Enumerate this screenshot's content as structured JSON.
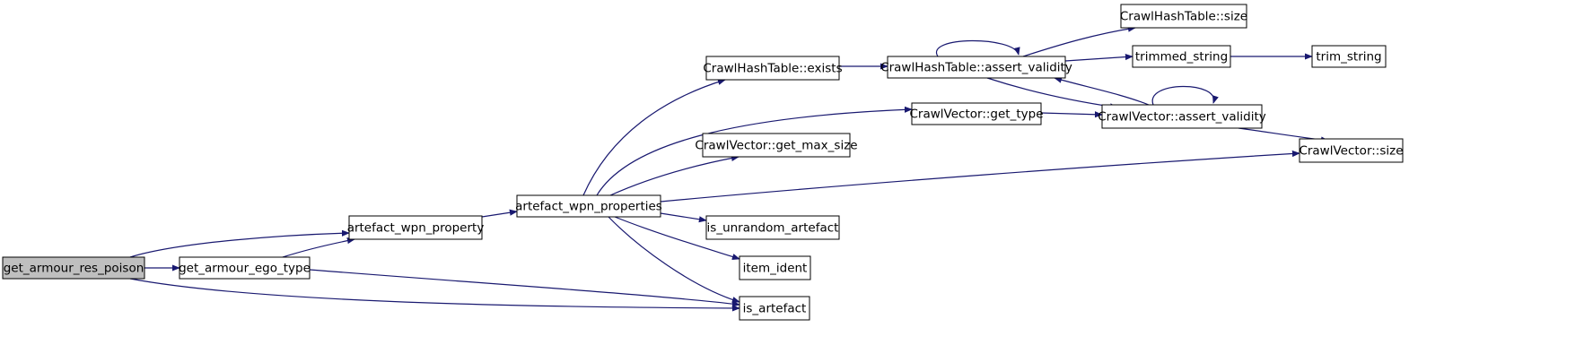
{
  "colors": {
    "edge": "#191970",
    "node_fill": "#ffffff",
    "root_fill": "#bfbfbf",
    "node_stroke": "#000000"
  },
  "nodes": [
    {
      "id": "root",
      "label": "get_armour_res_poison",
      "root": true
    },
    {
      "id": "artefact_wpn_property",
      "label": "artefact_wpn_property"
    },
    {
      "id": "get_armour_ego_type",
      "label": "get_armour_ego_type"
    },
    {
      "id": "artefact_wpn_properties",
      "label": "artefact_wpn_properties"
    },
    {
      "id": "is_artefact",
      "label": "is_artefact"
    },
    {
      "id": "hash_exists",
      "label": "CrawlHashTable::exists"
    },
    {
      "id": "vec_get_type",
      "label": "CrawlVector::get_type"
    },
    {
      "id": "vec_get_max_size",
      "label": "CrawlVector::get_max_size"
    },
    {
      "id": "vec_size",
      "label": "CrawlVector::size"
    },
    {
      "id": "is_unrandom_artefact",
      "label": "is_unrandom_artefact"
    },
    {
      "id": "item_ident",
      "label": "item_ident"
    },
    {
      "id": "hash_assert_validity",
      "label": "CrawlHashTable::assert_validity"
    },
    {
      "id": "hash_size",
      "label": "CrawlHashTable::size"
    },
    {
      "id": "trimmed_string",
      "label": "trimmed_string"
    },
    {
      "id": "vec_assert_validity",
      "label": "CrawlVector::assert_validity"
    },
    {
      "id": "trim_string",
      "label": "trim_string"
    }
  ],
  "edges": [
    {
      "from": "root",
      "to": "artefact_wpn_property"
    },
    {
      "from": "root",
      "to": "get_armour_ego_type"
    },
    {
      "from": "root",
      "to": "is_artefact"
    },
    {
      "from": "get_armour_ego_type",
      "to": "artefact_wpn_property"
    },
    {
      "from": "get_armour_ego_type",
      "to": "is_artefact"
    },
    {
      "from": "artefact_wpn_property",
      "to": "artefact_wpn_properties"
    },
    {
      "from": "artefact_wpn_properties",
      "to": "hash_exists"
    },
    {
      "from": "artefact_wpn_properties",
      "to": "vec_get_type"
    },
    {
      "from": "artefact_wpn_properties",
      "to": "vec_get_max_size"
    },
    {
      "from": "artefact_wpn_properties",
      "to": "vec_size"
    },
    {
      "from": "artefact_wpn_properties",
      "to": "is_unrandom_artefact"
    },
    {
      "from": "artefact_wpn_properties",
      "to": "item_ident"
    },
    {
      "from": "artefact_wpn_properties",
      "to": "is_artefact"
    },
    {
      "from": "hash_exists",
      "to": "hash_assert_validity"
    },
    {
      "from": "hash_assert_validity",
      "to": "hash_assert_validity"
    },
    {
      "from": "hash_assert_validity",
      "to": "hash_size"
    },
    {
      "from": "hash_assert_validity",
      "to": "trimmed_string"
    },
    {
      "from": "hash_assert_validity",
      "to": "vec_assert_validity"
    },
    {
      "from": "trimmed_string",
      "to": "trim_string"
    },
    {
      "from": "vec_get_type",
      "to": "vec_assert_validity"
    },
    {
      "from": "vec_assert_validity",
      "to": "hash_assert_validity"
    },
    {
      "from": "vec_assert_validity",
      "to": "vec_assert_validity"
    },
    {
      "from": "vec_assert_validity",
      "to": "vec_size"
    }
  ]
}
